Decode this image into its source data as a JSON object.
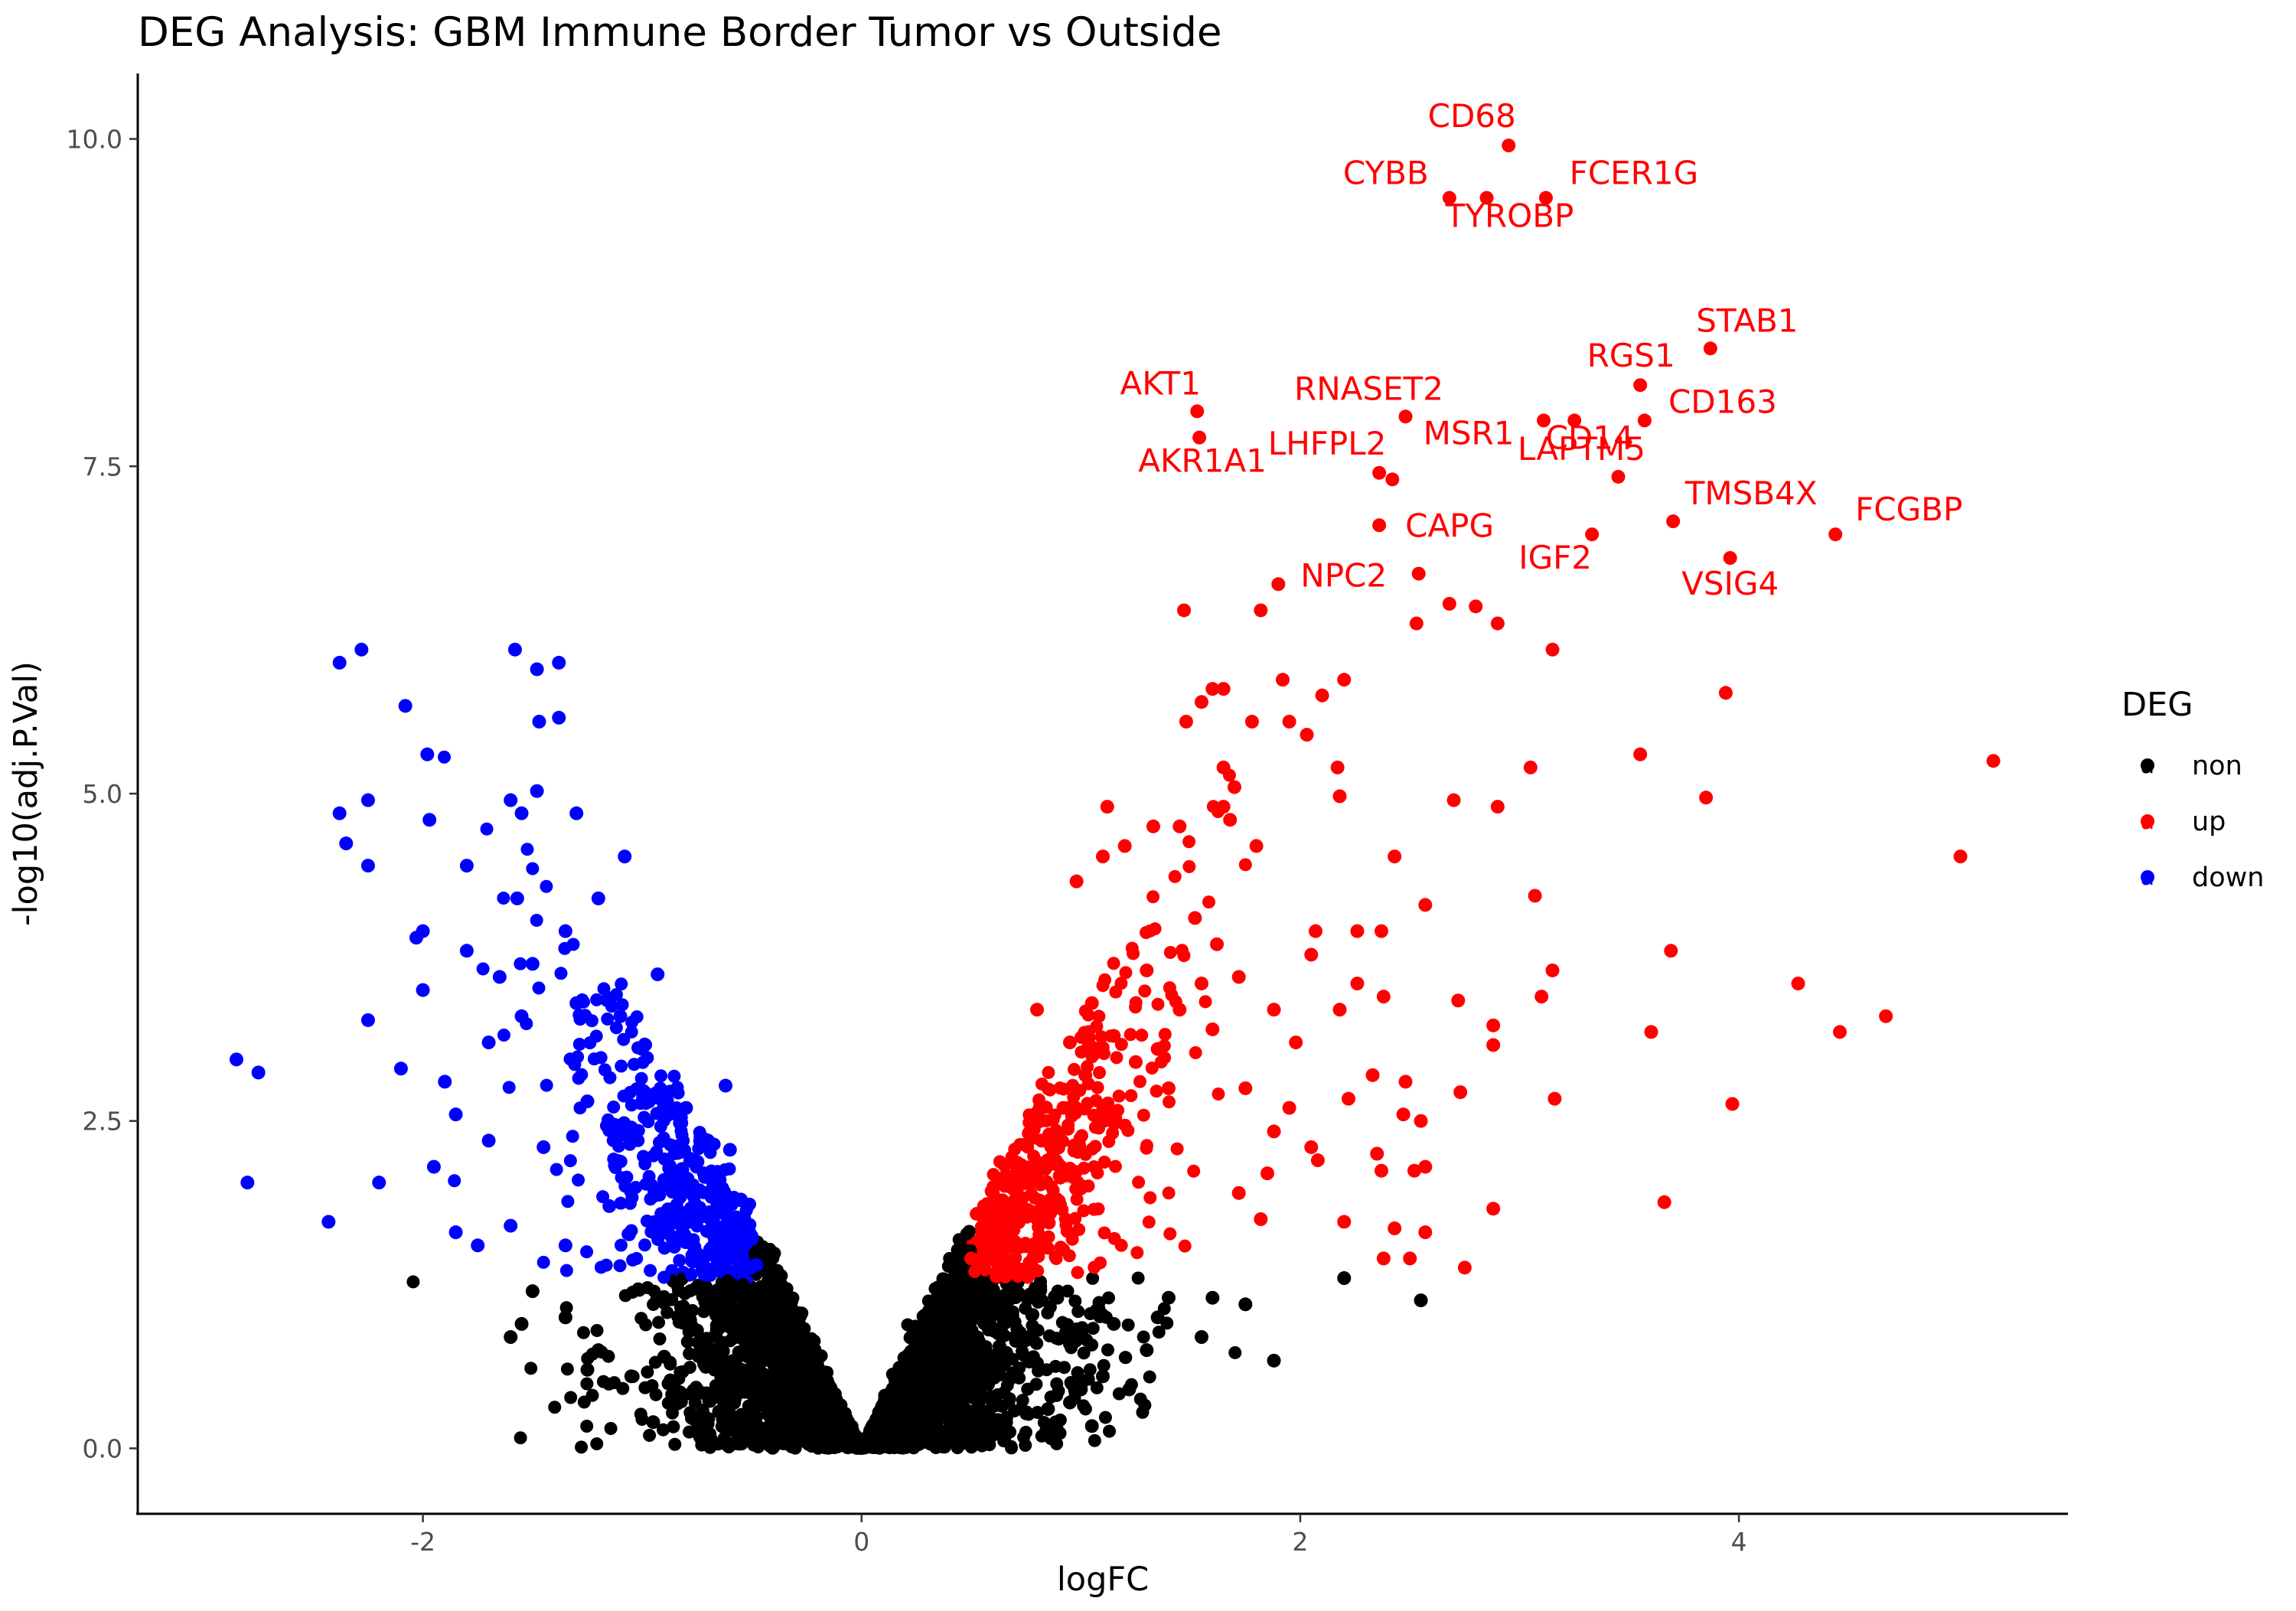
{
  "chart_data": {
    "type": "scatter",
    "title": "DEG Analysis: GBM Immune Border  Tumor vs Outside",
    "xlabel": "logFC",
    "ylabel": "-log10(adj.P.Val)",
    "xlim": [
      -3.3,
      5.5
    ],
    "ylim": [
      -0.5,
      10.5
    ],
    "x_ticks": [
      -2,
      0,
      2,
      4
    ],
    "x_tick_labels": [
      "-2",
      "0",
      "2",
      "4"
    ],
    "y_ticks": [
      0,
      2.5,
      5,
      7.5,
      10
    ],
    "y_tick_labels": [
      "0.0",
      "2.5",
      "5.0",
      "7.5",
      "10.0"
    ],
    "grid": false,
    "legend": {
      "title": "DEG",
      "placement": "right",
      "entries": [
        {
          "name": "non",
          "color": "#000000"
        },
        {
          "name": "up",
          "color": "#ff0000"
        },
        {
          "name": "down",
          "color": "#0000ff"
        }
      ]
    },
    "thresholds": {
      "abs_logFC": 0.5,
      "neg_log10_adj_p": 1.3
    },
    "series": [
      {
        "name": "up",
        "color": "#ff0000",
        "labeled_points": [
          {
            "label": "CD68",
            "x": 2.95,
            "y": 9.95
          },
          {
            "label": "CYBB",
            "x": 2.68,
            "y": 9.55
          },
          {
            "label": "TYROBP",
            "x": 2.85,
            "y": 9.55
          },
          {
            "label": "FCER1G",
            "x": 3.12,
            "y": 9.55
          },
          {
            "label": "STAB1",
            "x": 3.87,
            "y": 8.4
          },
          {
            "label": "RGS1",
            "x": 3.55,
            "y": 8.12
          },
          {
            "label": "CD163",
            "x": 3.57,
            "y": 7.85
          },
          {
            "label": "AKT1",
            "x": 1.53,
            "y": 7.92
          },
          {
            "label": "AKR1A1",
            "x": 1.54,
            "y": 7.72
          },
          {
            "label": "RNASET2",
            "x": 2.48,
            "y": 7.88
          },
          {
            "label": "MSR1",
            "x": 3.11,
            "y": 7.85
          },
          {
            "label": "CD14",
            "x": 3.25,
            "y": 7.85
          },
          {
            "label": "LHFPL2",
            "x": 2.36,
            "y": 7.45
          },
          {
            "label": "CAPG",
            "x": 2.36,
            "y": 7.05
          },
          {
            "label": "LAPTM5",
            "x": 3.45,
            "y": 7.42
          },
          {
            "label": "IGF2",
            "x": 3.33,
            "y": 6.98
          },
          {
            "label": "TMSB4X",
            "x": 3.7,
            "y": 7.08
          },
          {
            "label": "FCGBP",
            "x": 4.44,
            "y": 6.98
          },
          {
            "label": "VSIG4",
            "x": 3.96,
            "y": 6.8
          },
          {
            "label": "NPC2",
            "x": 2.54,
            "y": 6.68
          }
        ],
        "points": [
          [
            2.42,
            7.4
          ],
          [
            1.9,
            6.6
          ],
          [
            1.47,
            6.4
          ],
          [
            1.82,
            6.4
          ],
          [
            2.68,
            6.45
          ],
          [
            2.8,
            6.43
          ],
          [
            2.53,
            6.3
          ],
          [
            2.9,
            6.3
          ],
          [
            3.15,
            6.1
          ],
          [
            1.6,
            5.8
          ],
          [
            1.65,
            5.8
          ],
          [
            1.55,
            5.7
          ],
          [
            1.92,
            5.87
          ],
          [
            2.2,
            5.87
          ],
          [
            2.1,
            5.75
          ],
          [
            3.94,
            5.77
          ],
          [
            1.48,
            5.55
          ],
          [
            1.78,
            5.55
          ],
          [
            1.95,
            5.55
          ],
          [
            2.03,
            5.45
          ],
          [
            2.17,
            5.2
          ],
          [
            3.05,
            5.2
          ],
          [
            3.55,
            5.3
          ],
          [
            5.16,
            5.25
          ],
          [
            1.65,
            5.2
          ],
          [
            1.7,
            5.05
          ],
          [
            2.18,
            4.98
          ],
          [
            2.7,
            4.95
          ],
          [
            2.9,
            4.9
          ],
          [
            3.85,
            4.97
          ],
          [
            1.12,
            4.9
          ],
          [
            1.65,
            4.9
          ],
          [
            1.33,
            4.75
          ],
          [
            1.45,
            4.75
          ],
          [
            1.68,
            4.8
          ],
          [
            1.8,
            4.6
          ],
          [
            2.43,
            4.52
          ],
          [
            1.1,
            4.52
          ],
          [
            1.2,
            4.6
          ],
          [
            5.01,
            4.52
          ],
          [
            0.98,
            4.33
          ],
          [
            3.07,
            4.22
          ],
          [
            2.57,
            4.15
          ],
          [
            2.26,
            3.95
          ],
          [
            2.37,
            3.95
          ],
          [
            2.07,
            3.95
          ],
          [
            3.15,
            3.65
          ],
          [
            3.69,
            3.8
          ],
          [
            2.05,
            3.77
          ],
          [
            2.26,
            3.55
          ],
          [
            2.38,
            3.45
          ],
          [
            2.72,
            3.42
          ],
          [
            3.1,
            3.45
          ],
          [
            4.27,
            3.55
          ],
          [
            2.18,
            3.35
          ],
          [
            2.88,
            3.23
          ],
          [
            3.6,
            3.18
          ],
          [
            4.46,
            3.18
          ],
          [
            4.67,
            3.3
          ],
          [
            2.88,
            3.08
          ],
          [
            2.33,
            2.85
          ],
          [
            2.48,
            2.8
          ],
          [
            2.73,
            2.72
          ],
          [
            3.16,
            2.67
          ],
          [
            3.97,
            2.63
          ],
          [
            2.22,
            2.67
          ],
          [
            2.47,
            2.55
          ],
          [
            2.55,
            2.5
          ],
          [
            2.35,
            2.25
          ],
          [
            2.52,
            2.12
          ],
          [
            2.57,
            2.15
          ],
          [
            2.37,
            2.12
          ],
          [
            2.2,
            1.73
          ],
          [
            2.43,
            1.68
          ],
          [
            2.57,
            1.65
          ],
          [
            2.88,
            1.83
          ],
          [
            3.66,
            1.88
          ],
          [
            2.38,
            1.45
          ],
          [
            2.5,
            1.45
          ],
          [
            2.75,
            1.38
          ],
          [
            2.08,
            2.2
          ],
          [
            1.88,
            2.42
          ],
          [
            1.95,
            2.6
          ],
          [
            2.05,
            2.3
          ],
          [
            1.75,
            2.75
          ],
          [
            1.85,
            2.1
          ],
          [
            1.72,
            1.95
          ],
          [
            1.82,
            1.75
          ],
          [
            1.45,
            3.35
          ],
          [
            1.55,
            3.55
          ],
          [
            1.35,
            3.05
          ],
          [
            1.25,
            2.95
          ],
          [
            1.6,
            3.2
          ],
          [
            1.4,
            2.75
          ],
          [
            1.15,
            3.15
          ],
          [
            1.05,
            3.4
          ],
          [
            0.95,
            3.1
          ],
          [
            0.8,
            3.35
          ],
          [
            1.3,
            3.65
          ],
          [
            1.52,
            4.05
          ],
          [
            1.62,
            3.85
          ],
          [
            1.72,
            3.6
          ],
          [
            1.88,
            3.35
          ],
          [
            1.98,
            3.1
          ],
          [
            0.72,
            1.8
          ],
          [
            0.68,
            2.05
          ],
          [
            0.82,
            2.35
          ],
          [
            0.92,
            2.6
          ],
          [
            1.02,
            2.85
          ],
          [
            0.62,
            1.55
          ],
          [
            0.55,
            1.65
          ],
          [
            0.5,
            1.45
          ]
        ]
      },
      {
        "name": "down",
        "color": "#0000ff",
        "points": [
          [
            -2.28,
            6.1
          ],
          [
            -2.38,
            6.0
          ],
          [
            -1.58,
            6.1
          ],
          [
            -1.48,
            5.95
          ],
          [
            -1.38,
            6.0
          ],
          [
            -2.08,
            5.67
          ],
          [
            -1.47,
            5.55
          ],
          [
            -1.38,
            5.58
          ],
          [
            -1.98,
            5.3
          ],
          [
            -2.38,
            4.85
          ],
          [
            -2.25,
            4.95
          ],
          [
            -1.97,
            4.8
          ],
          [
            -1.48,
            5.02
          ],
          [
            -1.6,
            4.95
          ],
          [
            -1.55,
            4.85
          ],
          [
            -1.3,
            4.85
          ],
          [
            -2.35,
            4.62
          ],
          [
            -2.25,
            4.45
          ],
          [
            -1.08,
            4.52
          ],
          [
            -1.8,
            4.45
          ],
          [
            -1.57,
            4.2
          ],
          [
            -1.2,
            4.2
          ],
          [
            -2.0,
            3.95
          ],
          [
            -2.03,
            3.9
          ],
          [
            -1.35,
            3.95
          ],
          [
            -0.93,
            3.62
          ],
          [
            -2.25,
            3.27
          ],
          [
            -2.1,
            2.9
          ],
          [
            -2.2,
            2.03
          ],
          [
            -2.43,
            1.73
          ],
          [
            -2.85,
            2.97
          ],
          [
            -2.75,
            2.87
          ],
          [
            -2.8,
            2.03
          ],
          [
            -0.62,
            2.77
          ],
          [
            -0.6,
            2.28
          ],
          [
            -0.55,
            1.9
          ],
          [
            -0.5,
            1.6
          ],
          [
            -0.48,
            1.4
          ],
          [
            -1.85,
            1.65
          ],
          [
            -1.75,
            1.55
          ],
          [
            -1.9,
            2.8
          ],
          [
            -1.7,
            3.1
          ],
          [
            -1.55,
            3.3
          ],
          [
            -1.65,
            3.6
          ],
          [
            -1.8,
            3.8
          ],
          [
            -1.5,
            3.7
          ],
          [
            -1.3,
            3.4
          ],
          [
            -1.1,
            3.3
          ],
          [
            -1.0,
            3.05
          ],
          [
            -0.8,
            2.6
          ],
          [
            -0.7,
            2.35
          ],
          [
            -0.9,
            2.05
          ],
          [
            -1.15,
            1.85
          ],
          [
            -1.35,
            1.55
          ],
          [
            -1.6,
            1.7
          ],
          [
            -1.45,
            2.3
          ],
          [
            -1.25,
            2.65
          ],
          [
            -1.05,
            2.45
          ],
          [
            -0.85,
            1.75
          ],
          [
            -0.65,
            1.55
          ],
          [
            -1.7,
            2.35
          ],
          [
            -1.95,
            2.15
          ],
          [
            -1.85,
            2.55
          ],
          [
            -2.0,
            3.5
          ]
        ]
      },
      {
        "name": "non",
        "color": "#000000",
        "points": [
          [
            2.2,
            1.3
          ],
          [
            2.55,
            1.13
          ],
          [
            1.88,
            0.67
          ],
          [
            1.4,
            1.15
          ],
          [
            1.55,
            0.85
          ],
          [
            1.3,
            0.75
          ],
          [
            1.1,
            0.55
          ],
          [
            1.22,
            0.45
          ],
          [
            1.05,
            0.17
          ],
          [
            0.95,
            0.35
          ],
          [
            0.8,
            0.65
          ],
          [
            0.7,
            0.85
          ],
          [
            0.6,
            1.05
          ],
          [
            0.45,
            1.2
          ],
          [
            0.4,
            0.8
          ],
          [
            0.3,
            0.5
          ],
          [
            0.2,
            0.3
          ],
          [
            0.12,
            0.15
          ],
          [
            0.05,
            0.05
          ],
          [
            -0.05,
            0.05
          ],
          [
            -0.12,
            0.12
          ],
          [
            -0.2,
            0.3
          ],
          [
            -0.3,
            0.55
          ],
          [
            -0.4,
            0.8
          ],
          [
            -0.5,
            1.0
          ],
          [
            -0.6,
            1.2
          ],
          [
            -0.75,
            0.9
          ],
          [
            -0.9,
            0.7
          ],
          [
            -1.05,
            0.55
          ],
          [
            -1.2,
            0.75
          ],
          [
            -1.35,
            1.0
          ],
          [
            -1.5,
            1.2
          ],
          [
            -1.55,
            0.95
          ],
          [
            -1.6,
            0.85
          ],
          [
            -1.25,
            0.6
          ],
          [
            -0.85,
            0.45
          ],
          [
            -0.65,
            0.28
          ],
          [
            -0.95,
            0.2
          ],
          [
            -0.55,
            0.15
          ],
          [
            0.55,
            0.2
          ],
          [
            0.85,
            0.3
          ],
          [
            1.0,
            0.45
          ],
          [
            1.15,
            0.95
          ],
          [
            1.35,
            1.0
          ],
          [
            1.6,
            1.15
          ],
          [
            1.75,
            1.1
          ],
          [
            0.5,
            0.6
          ],
          [
            -0.45,
            0.45
          ]
        ]
      }
    ]
  }
}
